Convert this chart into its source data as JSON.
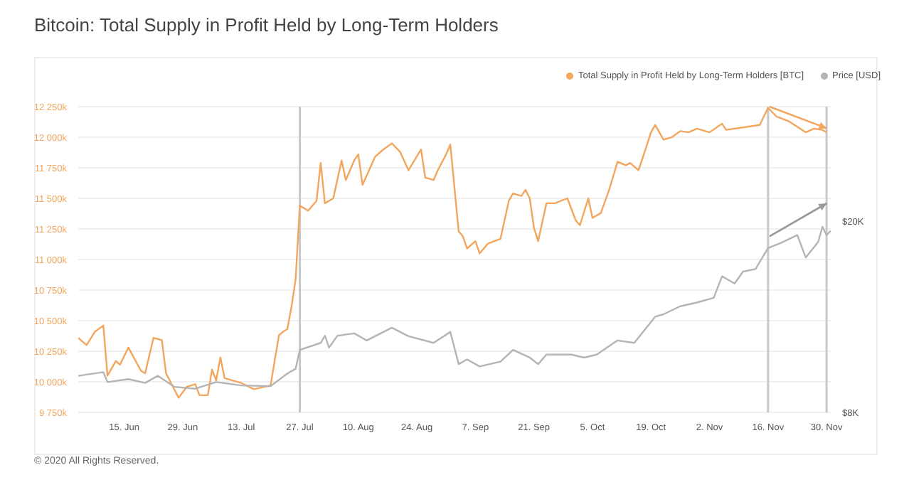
{
  "chart_data": {
    "type": "line",
    "title": "Bitcoin: Total Supply in Profit Held by Long-Term Holders",
    "annotations": [
      "© 2020 All Rights Reserved."
    ],
    "xlim": [
      "2020-06-04",
      "2020-12-01"
    ],
    "xticks": [
      {
        "value": "2020-06-15",
        "label": "15. Jun"
      },
      {
        "value": "2020-06-29",
        "label": "29. Jun"
      },
      {
        "value": "2020-07-13",
        "label": "13. Jul"
      },
      {
        "value": "2020-07-27",
        "label": "27. Jul"
      },
      {
        "value": "2020-08-10",
        "label": "10. Aug"
      },
      {
        "value": "2020-08-24",
        "label": "24. Aug"
      },
      {
        "value": "2020-09-07",
        "label": "7. Sep"
      },
      {
        "value": "2020-09-21",
        "label": "21. Sep"
      },
      {
        "value": "2020-10-05",
        "label": "5. Oct"
      },
      {
        "value": "2020-10-19",
        "label": "19. Oct"
      },
      {
        "value": "2020-11-02",
        "label": "2. Nov"
      },
      {
        "value": "2020-11-16",
        "label": "16. Nov"
      },
      {
        "value": "2020-11-30",
        "label": "30. Nov"
      }
    ],
    "ylim": [
      9750,
      12250
    ],
    "yticks": [
      {
        "value": 9750,
        "label": "9 750k"
      },
      {
        "value": 10000,
        "label": "10 000k"
      },
      {
        "value": 10250,
        "label": "10 250k"
      },
      {
        "value": 10500,
        "label": "10 500k"
      },
      {
        "value": 10750,
        "label": "10 750k"
      },
      {
        "value": 11000,
        "label": "11 000k"
      },
      {
        "value": 11250,
        "label": "11 250k"
      },
      {
        "value": 11500,
        "label": "11 500k"
      },
      {
        "value": 11750,
        "label": "11 750k"
      },
      {
        "value": 12000,
        "label": "12 000k"
      },
      {
        "value": 12250,
        "label": "12 250k"
      }
    ],
    "y2lim": [
      8000,
      34600
    ],
    "y2ticks": [
      {
        "value": 8000,
        "label": "$8K"
      },
      {
        "value": 20000,
        "label": "$20K"
      }
    ],
    "log": "y2",
    "grid": "y",
    "legend": "top right",
    "marker": "none",
    "line_style": "solid",
    "ref_lines": [
      {
        "axis": "x",
        "value": "2020-07-27",
        "color": "#c8c8c8"
      },
      {
        "axis": "x",
        "value": "2020-11-16",
        "color": "#c8c8c8"
      },
      {
        "axis": "x",
        "value": "2020-11-30",
        "color": "#c8c8c8"
      }
    ],
    "series": [
      {
        "name": "Total Supply in Profit Held by Long-Term Holders [BTC]",
        "color": "#f2a65e",
        "x": [
          "2020-06-04",
          "2020-06-06",
          "2020-06-08",
          "2020-06-10",
          "2020-06-11",
          "2020-06-13",
          "2020-06-14",
          "2020-06-16",
          "2020-06-19",
          "2020-06-20",
          "2020-06-22",
          "2020-06-24",
          "2020-06-25",
          "2020-06-28",
          "2020-06-30",
          "2020-07-02",
          "2020-07-03",
          "2020-07-05",
          "2020-07-06",
          "2020-07-07",
          "2020-07-08",
          "2020-07-09",
          "2020-07-13",
          "2020-07-16",
          "2020-07-20",
          "2020-07-22",
          "2020-07-23",
          "2020-07-24",
          "2020-07-25",
          "2020-07-26",
          "2020-07-27",
          "2020-07-29",
          "2020-07-31",
          "2020-08-01",
          "2020-08-02",
          "2020-08-04",
          "2020-08-06",
          "2020-08-07",
          "2020-08-09",
          "2020-08-10",
          "2020-08-11",
          "2020-08-14",
          "2020-08-16",
          "2020-08-18",
          "2020-08-20",
          "2020-08-22",
          "2020-08-25",
          "2020-08-26",
          "2020-08-28",
          "2020-08-29",
          "2020-08-31",
          "2020-09-01",
          "2020-09-03",
          "2020-09-04",
          "2020-09-05",
          "2020-09-07",
          "2020-09-08",
          "2020-09-10",
          "2020-09-13",
          "2020-09-15",
          "2020-09-16",
          "2020-09-18",
          "2020-09-19",
          "2020-09-20",
          "2020-09-21",
          "2020-09-22",
          "2020-09-24",
          "2020-09-26",
          "2020-09-29",
          "2020-10-01",
          "2020-10-02",
          "2020-10-04",
          "2020-10-05",
          "2020-10-07",
          "2020-10-09",
          "2020-10-11",
          "2020-10-13",
          "2020-10-14",
          "2020-10-16",
          "2020-10-17",
          "2020-10-19",
          "2020-10-20",
          "2020-10-22",
          "2020-10-24",
          "2020-10-26",
          "2020-10-28",
          "2020-10-30",
          "2020-11-02",
          "2020-11-05",
          "2020-11-06",
          "2020-11-10",
          "2020-11-14",
          "2020-11-16",
          "2020-11-18",
          "2020-11-21",
          "2020-11-25",
          "2020-11-27",
          "2020-11-29",
          "2020-11-30"
        ],
        "values": [
          10360,
          10300,
          10410,
          10460,
          10050,
          10170,
          10140,
          10280,
          10090,
          10070,
          10360,
          10340,
          10070,
          9870,
          9960,
          9980,
          9890,
          9890,
          10100,
          10010,
          10200,
          10030,
          9990,
          9940,
          9970,
          10380,
          10410,
          10430,
          10610,
          10840,
          11440,
          11400,
          11480,
          11790,
          11460,
          11500,
          11810,
          11650,
          11810,
          11860,
          11610,
          11840,
          11900,
          11950,
          11880,
          11730,
          11900,
          11670,
          11650,
          11730,
          11860,
          11940,
          11230,
          11190,
          11090,
          11150,
          11050,
          11130,
          11170,
          11480,
          11540,
          11520,
          11570,
          11500,
          11260,
          11150,
          11460,
          11460,
          11500,
          11320,
          11280,
          11500,
          11340,
          11380,
          11570,
          11800,
          11770,
          11790,
          11730,
          11830,
          12040,
          12100,
          11980,
          12000,
          12050,
          12040,
          12070,
          12040,
          12110,
          12060,
          12080,
          12100,
          12240,
          12170,
          12130,
          12040,
          12070,
          12060,
          12040
        ]
      },
      {
        "name": "Price [USD]",
        "color": "#b4b4b4",
        "axis": "y2",
        "x": [
          "2020-06-04",
          "2020-06-10",
          "2020-06-11",
          "2020-06-16",
          "2020-06-20",
          "2020-06-23",
          "2020-06-27",
          "2020-07-02",
          "2020-07-07",
          "2020-07-13",
          "2020-07-20",
          "2020-07-24",
          "2020-07-26",
          "2020-07-27",
          "2020-08-01",
          "2020-08-02",
          "2020-08-03",
          "2020-08-05",
          "2020-08-09",
          "2020-08-12",
          "2020-08-18",
          "2020-08-22",
          "2020-08-28",
          "2020-09-01",
          "2020-09-03",
          "2020-09-05",
          "2020-09-08",
          "2020-09-13",
          "2020-09-16",
          "2020-09-20",
          "2020-09-22",
          "2020-09-24",
          "2020-09-30",
          "2020-10-03",
          "2020-10-06",
          "2020-10-11",
          "2020-10-15",
          "2020-10-20",
          "2020-10-22",
          "2020-10-26",
          "2020-10-30",
          "2020-11-03",
          "2020-11-05",
          "2020-11-08",
          "2020-11-10",
          "2020-11-13",
          "2020-11-16",
          "2020-11-19",
          "2020-11-23",
          "2020-11-25",
          "2020-11-28",
          "2020-11-29",
          "2020-11-30",
          "2020-12-01"
        ],
        "values": [
          9530,
          9700,
          9250,
          9380,
          9210,
          9530,
          9040,
          8960,
          9250,
          9100,
          9070,
          9630,
          9860,
          10790,
          11160,
          11550,
          10910,
          11550,
          11680,
          11290,
          12000,
          11520,
          11160,
          11760,
          10080,
          10310,
          9970,
          10200,
          10790,
          10400,
          10080,
          10550,
          10550,
          10400,
          10550,
          11290,
          11160,
          12650,
          12800,
          13300,
          13540,
          13850,
          15350,
          14830,
          15700,
          15900,
          17570,
          18000,
          18700,
          16800,
          18100,
          19460,
          18700,
          19100
        ]
      }
    ]
  }
}
